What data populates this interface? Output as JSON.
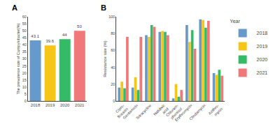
{
  "chart_data": [
    {
      "type": "bar",
      "title": "A",
      "categories": [
        "2018",
        "2019",
        "2020",
        "2021"
      ],
      "values": [
        43.1,
        39.6,
        44,
        50
      ],
      "colors": [
        "#6699cc",
        "#f5c518",
        "#33bb66",
        "#f07878"
      ],
      "ylabel": "The prevalence rate of Campylobacter(%)",
      "ylim": [
        0,
        60
      ],
      "yticks": [
        0,
        5,
        10,
        15,
        20,
        25,
        30,
        35,
        40,
        45,
        50,
        55,
        60
      ],
      "data_labels": true,
      "grid": false
    },
    {
      "type": "bar",
      "title": "B",
      "categories": [
        "Cipro-\nfloxacin",
        "Gentamicin",
        "Tetracycline",
        "Nalidixic\nacid",
        "Chloram-\nphenicol",
        "Erythromycin",
        "Clindamycin",
        "Azithro-\nmycin"
      ],
      "series": [
        {
          "name": "2018",
          "color": "#6699cc",
          "values": [
            16,
            16,
            78,
            82,
            3,
            90,
            97,
            33
          ]
        },
        {
          "name": "2019",
          "color": "#f5c518",
          "values": [
            23,
            28,
            76,
            83,
            20,
            70,
            96,
            31
          ]
        },
        {
          "name": "2020",
          "color": "#33bb66",
          "values": [
            15,
            13,
            90,
            82,
            5,
            84,
            87,
            37
          ]
        },
        {
          "name": "2021",
          "color": "#f07878",
          "values": [
            76,
            76,
            88,
            78,
            13,
            62,
            95,
            30
          ]
        }
      ],
      "ylabel": "Resistance rate (%)",
      "ylim": [
        0,
        100
      ],
      "yticks": [
        0,
        20,
        40,
        60,
        80,
        100
      ],
      "legend": "upper right",
      "legend_title": "Year",
      "grid": false
    }
  ]
}
